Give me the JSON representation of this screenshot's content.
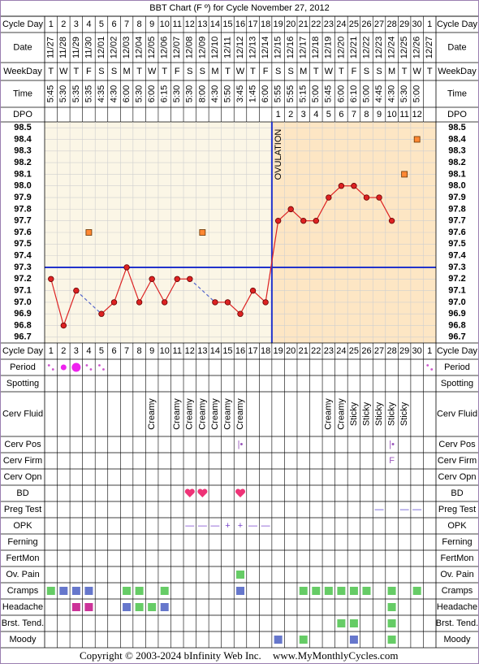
{
  "title": "BBT Chart (F º) for Cycle November 27, 2012",
  "labels": {
    "cycle_day": "Cycle Day",
    "date": "Date",
    "weekday": "WeekDay",
    "time": "Time",
    "dpo": "DPO"
  },
  "cycle_day": [
    1,
    2,
    3,
    4,
    5,
    6,
    7,
    8,
    9,
    10,
    11,
    12,
    13,
    14,
    15,
    16,
    17,
    18,
    19,
    20,
    21,
    22,
    23,
    24,
    25,
    26,
    27,
    28,
    29,
    30,
    1
  ],
  "date": [
    "11/27",
    "11/28",
    "11/29",
    "11/30",
    "12/01",
    "12/02",
    "12/03",
    "12/04",
    "12/05",
    "12/06",
    "12/07",
    "12/08",
    "12/09",
    "12/10",
    "12/11",
    "12/12",
    "12/13",
    "12/14",
    "12/15",
    "12/16",
    "12/17",
    "12/18",
    "12/19",
    "12/20",
    "12/21",
    "12/22",
    "12/23",
    "12/24",
    "12/25",
    "12/26",
    "12/27"
  ],
  "weekday": [
    "T",
    "W",
    "T",
    "F",
    "S",
    "S",
    "M",
    "T",
    "W",
    "T",
    "F",
    "S",
    "S",
    "M",
    "T",
    "W",
    "T",
    "F",
    "S",
    "S",
    "M",
    "T",
    "W",
    "T",
    "F",
    "S",
    "S",
    "M",
    "T",
    "W",
    "T"
  ],
  "time": [
    "5:45",
    "5:30",
    "5:35",
    "5:35",
    "4:35",
    "4:30",
    "6:00",
    "5:30",
    "6:00",
    "6:15",
    "5:30",
    "5:30",
    "8:00",
    "4:30",
    "5:50",
    "3:45",
    "1:45",
    "6:00",
    "5:55",
    "5:55",
    "5:15",
    "5:00",
    "5:45",
    "6:00",
    "6:10",
    "5:00",
    "4:45",
    "4:30",
    "5:30",
    "5:00",
    null
  ],
  "dpo": [
    null,
    null,
    null,
    null,
    null,
    null,
    null,
    null,
    null,
    null,
    null,
    null,
    null,
    null,
    null,
    null,
    null,
    null,
    1,
    2,
    3,
    4,
    5,
    6,
    7,
    8,
    9,
    10,
    11,
    12,
    null
  ],
  "chart_data": {
    "type": "line",
    "ylim": [
      96.65,
      98.55
    ],
    "yticks": [
      98.5,
      98.4,
      98.3,
      98.2,
      98.1,
      {
        "value": 98.0,
        "label": "98.0"
      },
      97.9,
      97.8,
      97.7,
      97.6,
      97.5,
      97.4,
      97.3,
      97.2,
      97.1,
      {
        "value": 97.0,
        "label": "97.0"
      },
      96.9,
      96.8,
      96.7
    ],
    "grid": true,
    "coverline": 97.3,
    "coverline_color": "#2233cc",
    "ovulation_label": "OVULATION",
    "ovulation_after_day": 18,
    "series": [
      {
        "color": "#dd2222",
        "marker": "circle",
        "values": [
          97.2,
          96.8,
          97.1,
          null,
          96.9,
          97.0,
          97.3,
          97.0,
          97.2,
          97.0,
          97.2,
          97.2,
          null,
          97.0,
          97.0,
          96.9,
          97.1,
          97.0,
          97.7,
          97.8,
          97.7,
          97.7,
          97.9,
          98.0,
          98.0,
          97.9,
          97.9,
          97.7,
          null,
          null,
          null
        ]
      },
      {
        "color": "#ff8833",
        "marker": "square",
        "values": [
          null,
          null,
          null,
          97.6,
          null,
          null,
          null,
          null,
          null,
          null,
          null,
          null,
          97.6,
          null,
          null,
          null,
          null,
          null,
          null,
          null,
          null,
          null,
          null,
          null,
          null,
          null,
          null,
          null,
          98.1,
          98.4,
          null
        ]
      }
    ]
  },
  "observations": [
    {
      "label": "Period",
      "kind": "period",
      "color": "#ee22ee",
      "cells": {
        "0": 1,
        "1": 2,
        "2": 3,
        "3": 1,
        "4": 1,
        "30": 1
      }
    },
    {
      "label": "Spotting",
      "kind": "text"
    },
    {
      "label": "Cerv Fluid",
      "kind": "rotated",
      "color": "#000000",
      "cells": {
        "8": "Creamy",
        "10": "Creamy",
        "11": "Creamy",
        "12": "Creamy",
        "13": "Creamy",
        "14": "Creamy",
        "15": "Creamy",
        "22": "Creamy",
        "23": "Creamy",
        "24": "Sticky",
        "25": "Sticky",
        "26": "Sticky",
        "27": "Sticky",
        "28": "Sticky"
      }
    },
    {
      "label": "Cerv Pos",
      "kind": "text",
      "color": "#9955bb",
      "cells": {
        "15": "|•",
        "27": "|•"
      }
    },
    {
      "label": "Cerv Firm",
      "kind": "text",
      "color": "#9955bb",
      "cells": {
        "27": "F"
      }
    },
    {
      "label": "Cerv Opn",
      "kind": "text"
    },
    {
      "label": "BD",
      "kind": "heart",
      "color": "#ee3377",
      "cells": {
        "11": 1,
        "12": 1,
        "15": 1
      }
    },
    {
      "label": "Preg Test",
      "kind": "text",
      "color": "#5544cc",
      "cells": {
        "26": "—",
        "28": "—",
        "29": "—"
      }
    },
    {
      "label": "OPK",
      "kind": "text",
      "color": "#7744cc",
      "cells": {
        "11": "—",
        "12": "—",
        "13": "—",
        "14": "+",
        "15": "+",
        "16": "—",
        "17": "—"
      }
    },
    {
      "label": "Ferning",
      "kind": "text"
    },
    {
      "label": "FertMon",
      "kind": "text"
    },
    {
      "label": "Ov. Pain",
      "kind": "square",
      "cells": {
        "15": "#66cc66"
      }
    },
    {
      "label": "Cramps",
      "kind": "square",
      "cells": {
        "0": "#66cc66",
        "1": "#6677cc",
        "2": "#6677cc",
        "3": "#6677cc",
        "6": "#66cc66",
        "7": "#66cc66",
        "9": "#66cc66",
        "15": "#6677cc",
        "20": "#66cc66",
        "21": "#66cc66",
        "22": "#66cc66",
        "23": "#66cc66",
        "24": "#66cc66",
        "25": "#66cc66",
        "27": "#66cc66",
        "29": "#66cc66"
      }
    },
    {
      "label": "Headache",
      "kind": "square",
      "cells": {
        "2": "#cc3399",
        "3": "#cc3399",
        "6": "#6677cc",
        "7": "#66cc66",
        "8": "#66cc66",
        "9": "#6677cc",
        "27": "#66cc66"
      }
    },
    {
      "label": "Brst. Tend.",
      "kind": "square",
      "cells": {
        "23": "#66cc66",
        "24": "#66cc66",
        "27": "#66cc66"
      }
    },
    {
      "label": "Moody",
      "kind": "square",
      "cells": {
        "18": "#6677cc",
        "20": "#66cc66",
        "24": "#6677cc",
        "27": "#66cc66"
      }
    }
  ],
  "footer": {
    "copyright": "Copyright © 2003-2024 bInfinity Web Inc.",
    "site": "www.MyMonthlyCycles.com"
  }
}
